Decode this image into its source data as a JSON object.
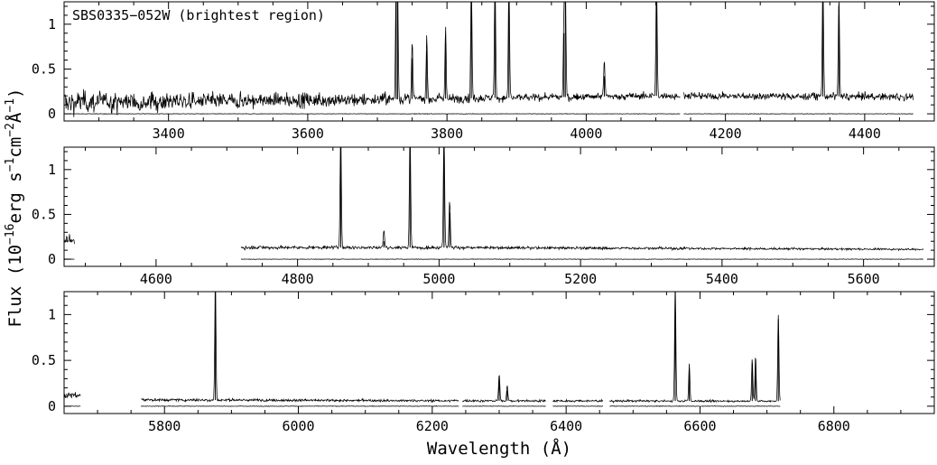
{
  "chart_data": {
    "type": "line",
    "title": "SBS0335−052W (brightest region)",
    "xlabel": "Wavelength (Å)",
    "ylabel": "Flux (10⁻¹⁶erg s⁻¹cm⁻²Å⁻¹)",
    "ylabel_parts": {
      "prefix": "Flux (10",
      "exp1": "−16",
      "mid1": "erg s",
      "exp2": "−1",
      "mid2": "cm",
      "exp3": "−2",
      "mid3": "Å",
      "exp4": "−1",
      "suffix": ")"
    },
    "ylim": [
      -0.08,
      1.25
    ],
    "yticks": [
      0,
      0.5,
      1
    ],
    "ytick_labels": [
      "0",
      "0.5",
      "1"
    ],
    "grid": false,
    "panels": [
      {
        "xlim": [
          3250,
          4500
        ],
        "xticks": [
          3400,
          3600,
          3800,
          4000,
          4200,
          4400
        ],
        "xtick_labels": [
          "3400",
          "3600",
          "3800",
          "4000",
          "4200",
          "4400"
        ],
        "ranges": [
          [
            3250,
            4135
          ],
          [
            4140,
            4470
          ]
        ],
        "continuum": [
          [
            3250,
            0.13
          ],
          [
            3700,
            0.16
          ],
          [
            3900,
            0.18
          ],
          [
            4100,
            0.2
          ],
          [
            4470,
            0.19
          ]
        ],
        "noise": [
          [
            3250,
            0.13
          ],
          [
            3450,
            0.09
          ],
          [
            3700,
            0.07
          ],
          [
            3900,
            0.04
          ],
          [
            4470,
            0.04
          ]
        ],
        "lines": [
          {
            "wavelength": 3727,
            "peak": 1.3
          },
          {
            "wavelength": 3729,
            "peak": 1.3
          },
          {
            "wavelength": 3750,
            "peak": 0.62
          },
          {
            "wavelength": 3771,
            "peak": 0.7
          },
          {
            "wavelength": 3798,
            "peak": 0.8
          },
          {
            "wavelength": 3835,
            "peak": 1.3
          },
          {
            "wavelength": 3869,
            "peak": 1.3
          },
          {
            "wavelength": 3889,
            "peak": 1.3
          },
          {
            "wavelength": 3968,
            "peak": 0.9
          },
          {
            "wavelength": 3970,
            "peak": 1.3
          },
          {
            "wavelength": 4026,
            "peak": 0.42
          },
          {
            "wavelength": 4101,
            "peak": 1.3
          },
          {
            "wavelength": 4340,
            "peak": 1.3
          },
          {
            "wavelength": 4363,
            "peak": 1.1
          }
        ]
      },
      {
        "xlim": [
          4470,
          5700
        ],
        "xticks": [
          4600,
          4800,
          5000,
          5200,
          5400,
          5600
        ],
        "xtick_labels": [
          "4600",
          "4800",
          "5000",
          "5200",
          "5400",
          "5600"
        ],
        "ranges": [
          [
            4470,
            4485
          ],
          [
            4720,
            5685
          ]
        ],
        "continuum": [
          [
            4470,
            0.2
          ],
          [
            4485,
            0.2
          ],
          [
            4720,
            0.13
          ],
          [
            5000,
            0.13
          ],
          [
            5685,
            0.11
          ]
        ],
        "noise": [
          [
            4470,
            0.06
          ],
          [
            4485,
            0.06
          ],
          [
            4720,
            0.02
          ],
          [
            5685,
            0.01
          ]
        ],
        "lines": [
          {
            "wavelength": 4861,
            "peak": 1.3
          },
          {
            "wavelength": 4922,
            "peak": 0.2
          },
          {
            "wavelength": 4959,
            "peak": 1.3
          },
          {
            "wavelength": 5007,
            "peak": 1.3
          },
          {
            "wavelength": 5015,
            "peak": 0.52
          }
        ]
      },
      {
        "xlim": [
          5650,
          6950
        ],
        "xticks": [
          5800,
          6000,
          6200,
          6400,
          6600,
          6800
        ],
        "xtick_labels": [
          "5800",
          "6000",
          "6200",
          "6400",
          "6600",
          "6800"
        ],
        "ranges": [
          [
            5650,
            5675
          ],
          [
            5765,
            6240
          ],
          [
            6245,
            6370
          ],
          [
            6380,
            6455
          ],
          [
            6465,
            6720
          ]
        ],
        "continuum": [
          [
            5650,
            0.12
          ],
          [
            5675,
            0.12
          ],
          [
            5765,
            0.07
          ],
          [
            6200,
            0.06
          ],
          [
            6720,
            0.055
          ]
        ],
        "noise": [
          [
            5650,
            0.03
          ],
          [
            5675,
            0.03
          ],
          [
            5765,
            0.015
          ],
          [
            6720,
            0.01
          ]
        ],
        "lines": [
          {
            "wavelength": 5876,
            "peak": 1.3
          },
          {
            "wavelength": 6300,
            "peak": 0.3
          },
          {
            "wavelength": 6312,
            "peak": 0.17
          },
          {
            "wavelength": 6563,
            "peak": 1.3
          },
          {
            "wavelength": 6584,
            "peak": 0.4
          },
          {
            "wavelength": 6678,
            "peak": 0.46
          },
          {
            "wavelength": 6683,
            "peak": 0.5
          },
          {
            "wavelength": 6717,
            "peak": 0.95
          }
        ]
      }
    ]
  }
}
